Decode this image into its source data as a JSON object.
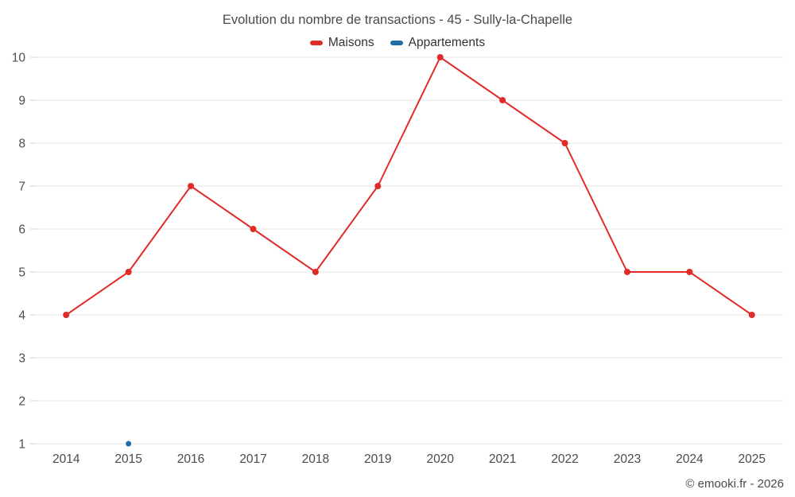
{
  "chart_data": {
    "type": "line",
    "title": "Evolution du nombre de transactions - 45 - Sully-la-Chapelle",
    "categories": [
      "2014",
      "2015",
      "2016",
      "2017",
      "2018",
      "2019",
      "2020",
      "2021",
      "2022",
      "2023",
      "2024",
      "2025"
    ],
    "series": [
      {
        "name": "Maisons",
        "color": "#e12b2b",
        "values": [
          4,
          5,
          7,
          6,
          5,
          7,
          10,
          9,
          8,
          5,
          5,
          4
        ]
      },
      {
        "name": "Appartements",
        "color": "#1d6fa5",
        "values": [
          null,
          1,
          null,
          null,
          null,
          null,
          null,
          null,
          null,
          null,
          null,
          null
        ]
      }
    ],
    "xlabel": "",
    "ylabel": "",
    "ylim": [
      1,
      10
    ],
    "yticks": [
      1,
      2,
      3,
      4,
      5,
      6,
      7,
      8,
      9,
      10
    ],
    "grid": "horizontal",
    "legend_position": "top"
  },
  "footer": {
    "copyright": "© emooki.fr - 2026"
  }
}
